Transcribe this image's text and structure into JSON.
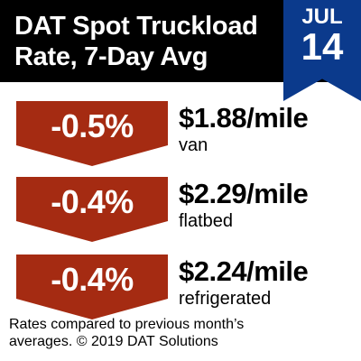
{
  "header": {
    "title_line1": "DAT Spot Truckload",
    "title_line2": "Rate, 7-Day Avg"
  },
  "date": {
    "month": "JUL",
    "day": "14"
  },
  "rows": [
    {
      "change": "-0.5%",
      "rate": "$1.88/mile",
      "type": "van"
    },
    {
      "change": "-0.4%",
      "rate": "$2.29/mile",
      "type": "flatbed"
    },
    {
      "change": "-0.4%",
      "rate": "$2.24/mile",
      "type": "refrigerated"
    }
  ],
  "footnote": {
    "line1": "Rates compared to previous month’s",
    "line2": "averages. © 2019 DAT Solutions"
  },
  "colors": {
    "header_bg": "#000000",
    "ribbon": "#0b3a8c",
    "badge": "#a52b12"
  }
}
